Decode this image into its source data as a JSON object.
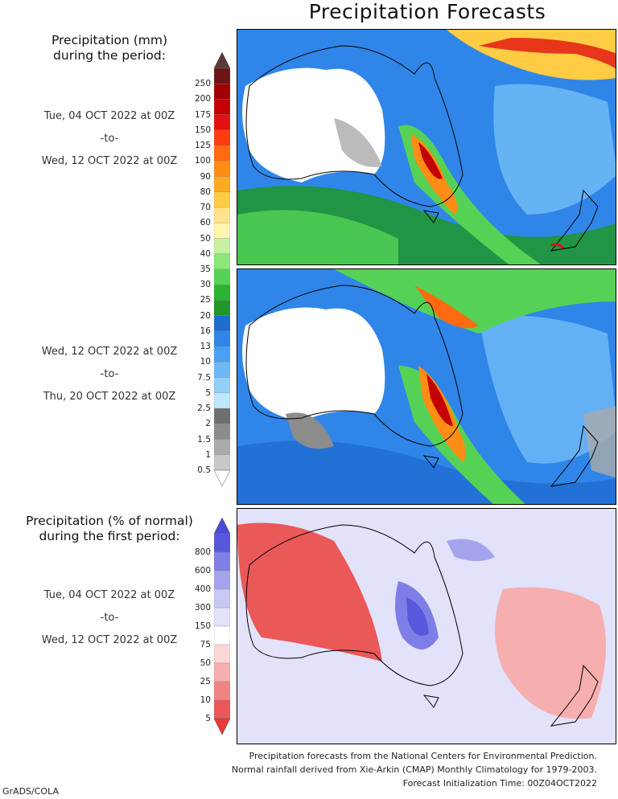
{
  "title": "Precipitation Forecasts",
  "amount_legend": {
    "heading_line1": "Precipitation (mm)",
    "heading_line2": "during the period:",
    "levels": [
      "250",
      "200",
      "175",
      "150",
      "125",
      "100",
      "90",
      "80",
      "70",
      "60",
      "50",
      "40",
      "35",
      "30",
      "25",
      "20",
      "16",
      "13",
      "10",
      "7.5",
      "5",
      "2.5",
      "2",
      "1.5",
      "1",
      "0.5"
    ],
    "colors": [
      "#6e1414",
      "#a00000",
      "#c40000",
      "#e21010",
      "#ff3c10",
      "#ff6a10",
      "#ff8c14",
      "#ffaa22",
      "#ffcc44",
      "#ffe388",
      "#fff5b0",
      "#c8f0a0",
      "#8ce678",
      "#55d255",
      "#2cb430",
      "#1e9628",
      "#1f6cd2",
      "#2f86e8",
      "#4aa0f2",
      "#6cb8f6",
      "#92d0fa",
      "#bde6fa",
      "#6e6e6e",
      "#8c8c8c",
      "#aaaaaa",
      "#c8c8c8"
    ],
    "top_arrow_color": "#5a3a36",
    "bottom_arrow_color": "#ffffff"
  },
  "period1": {
    "start": "Tue, 04 OCT 2022 at 00Z",
    "sep": "-to-",
    "end": "Wed, 12 OCT 2022 at 00Z"
  },
  "period2": {
    "start": "Wed, 12 OCT 2022 at 00Z",
    "sep": "-to-",
    "end": "Thu, 20 OCT 2022 at 00Z"
  },
  "pct_legend": {
    "heading_line1": "Precipitation (% of normal)",
    "heading_line2": "during the first period:",
    "levels": [
      "800",
      "600",
      "400",
      "300",
      "150",
      "75",
      "50",
      "25",
      "10",
      "5"
    ],
    "colors": [
      "#5858dd",
      "#7e7ee6",
      "#a4a4ee",
      "#c8c8f6",
      "#e2e2fa",
      "#ffffff",
      "#fbd6d6",
      "#f6aeae",
      "#f08484",
      "#ea5858"
    ],
    "top_arrow_color": "#4a4ad8",
    "bottom_arrow_color": "#e83a3a"
  },
  "period3": {
    "start": "Tue, 04 OCT 2022 at 00Z",
    "sep": "-to-",
    "end": "Wed, 12 OCT 2022 at 00Z"
  },
  "footer": {
    "line1": "Precipitation forecasts from the National Centers for Environmental Prediction.",
    "line2": "Normal rainfall derived from Xie-Arkin (CMAP) Monthly Climatology for 1979-2003.",
    "line3": "Forecast Initialization Time: 00Z04OCT2022"
  },
  "credit": "GrADS/COLA"
}
